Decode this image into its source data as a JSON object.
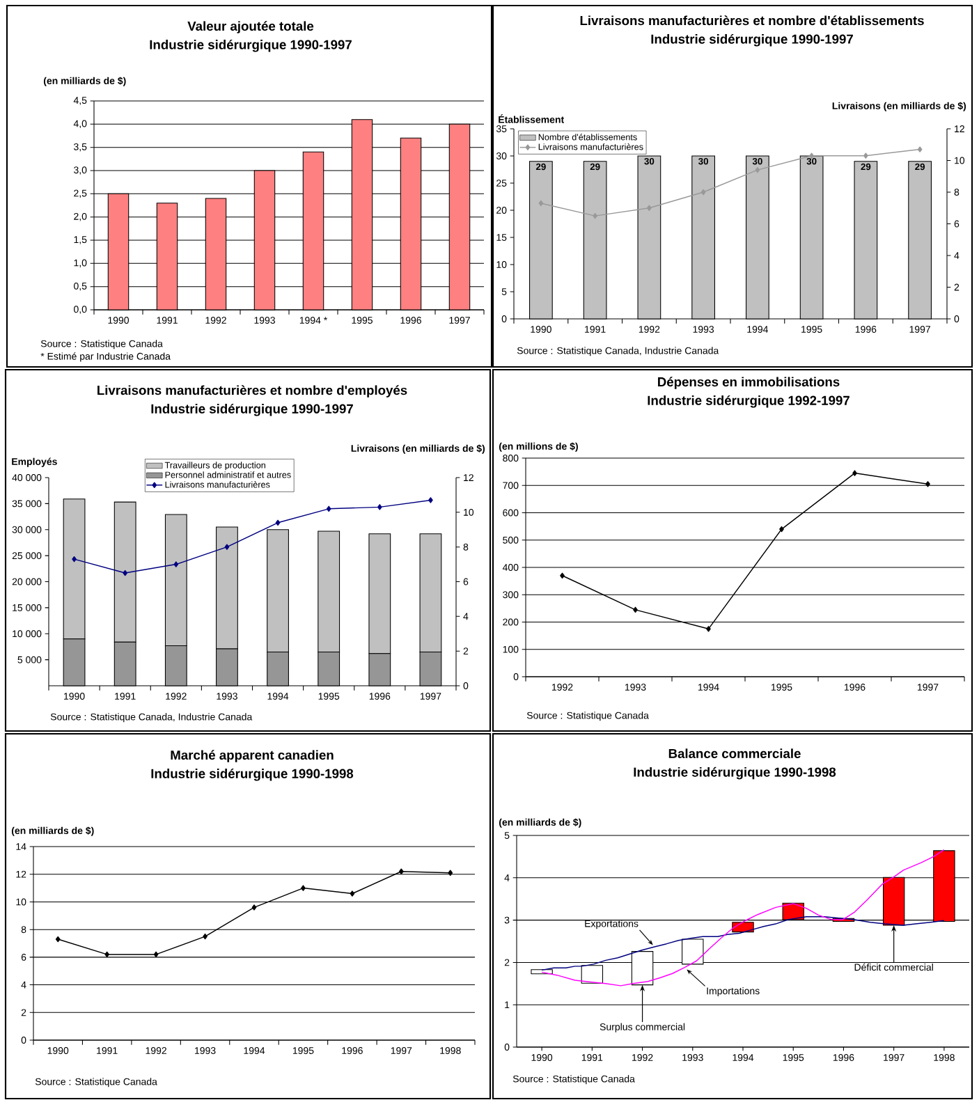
{
  "chart_data": [
    {
      "type": "bar",
      "title": "Valeur ajoutée totale",
      "subtitle": "Industrie sidérurgique 1990-1997",
      "ylabel": "(en milliards de $)",
      "categories": [
        "1990",
        "1991",
        "1992",
        "1993",
        "1994 *",
        "1995",
        "1996",
        "1997"
      ],
      "values": [
        2.5,
        2.3,
        2.4,
        3.0,
        3.4,
        4.1,
        3.7,
        4.0
      ],
      "color": "#ff8080",
      "ylim": [
        0,
        4.5
      ],
      "yticks": [
        {
          "value": 0,
          "label": "0,0"
        },
        {
          "value": 0.5,
          "label": "0,5"
        },
        {
          "value": 1,
          "label": "1,0"
        },
        {
          "value": 1.5,
          "label": "1,5"
        },
        {
          "value": 2,
          "label": "2,0"
        },
        {
          "value": 2.5,
          "label": "2,5"
        },
        {
          "value": 3,
          "label": "3,0"
        },
        {
          "value": 3.5,
          "label": "3,5"
        },
        {
          "value": 4,
          "label": "4,0"
        },
        {
          "value": 4.5,
          "label": "4,5"
        }
      ],
      "grid": "y",
      "annotations": [
        "Source : Statistique Canada",
        "* Estimé par Industrie Canada"
      ]
    },
    {
      "type": "bar",
      "title": "Livraisons manufacturières et nombre d'établissements",
      "subtitle": "Industrie sidérurgique 1990-1997",
      "ylabel": "Établissement",
      "y2label": "Livraisons (en milliards de $)",
      "categories": [
        "1990",
        "1991",
        "1992",
        "1993",
        "1994",
        "1995",
        "1996",
        "1997"
      ],
      "series": [
        {
          "name": "Nombre d'établissements",
          "type": "bar",
          "color": "#c0c0c0",
          "values": [
            29,
            29,
            30,
            30,
            30,
            30,
            29,
            29
          ],
          "value_labels": [
            "29",
            "29",
            "30",
            "30",
            "30",
            "30",
            "29",
            "29"
          ]
        },
        {
          "name": "Livraisons manufacturières",
          "type": "line",
          "axis": "y2",
          "color": "#999999",
          "values": [
            7.3,
            6.5,
            7.0,
            8.0,
            9.4,
            10.3,
            10.3,
            10.7
          ]
        }
      ],
      "ylim": [
        0,
        35
      ],
      "yticks": [
        0,
        5,
        10,
        15,
        20,
        25,
        30,
        35
      ],
      "y2lim": [
        0,
        12
      ],
      "y2ticks": [
        0,
        2,
        4,
        6,
        8,
        10,
        12
      ],
      "legend": "top left",
      "marker": "diamond",
      "annotations": [
        "Source : Statistique Canada, Industrie Canada"
      ]
    },
    {
      "type": "bar",
      "title": "Livraisons manufacturières et nombre d'employés",
      "subtitle": "Industrie sidérurgique 1990-1997",
      "ylabel": "Employés",
      "y2label": "Livraisons (en milliards de $)",
      "categories": [
        "1990",
        "1991",
        "1992",
        "1993",
        "1994",
        "1995",
        "1996",
        "1997"
      ],
      "stacked": true,
      "series": [
        {
          "name": "Personnel administratif et autres",
          "type": "bar",
          "color": "#969696",
          "values": [
            9000,
            8400,
            7700,
            7100,
            6500,
            6500,
            6200,
            6500
          ]
        },
        {
          "name": "Travailleurs de production",
          "type": "bar",
          "color": "#c0c0c0",
          "values": [
            26900,
            26900,
            25200,
            23400,
            23500,
            23200,
            23000,
            22700
          ]
        },
        {
          "name": "Livraisons manufacturières",
          "type": "line",
          "axis": "y2",
          "color": "#000080",
          "values": [
            7.3,
            6.5,
            7.0,
            8.0,
            9.4,
            10.2,
            10.3,
            10.7
          ]
        }
      ],
      "ylim": [
        0,
        40000
      ],
      "yticks": [
        {
          "value": 5000,
          "label": "5 000"
        },
        {
          "value": 10000,
          "label": "10 000"
        },
        {
          "value": 15000,
          "label": "15 000"
        },
        {
          "value": 20000,
          "label": "20 000"
        },
        {
          "value": 25000,
          "label": "25 000"
        },
        {
          "value": 30000,
          "label": "30 000"
        },
        {
          "value": 35000,
          "label": "35 000"
        },
        {
          "value": 40000,
          "label": "40 000"
        }
      ],
      "y2lim": [
        0,
        12
      ],
      "y2ticks": [
        0,
        2,
        4,
        6,
        8,
        10,
        12
      ],
      "legend": "top",
      "marker": "diamond",
      "annotations": [
        "Source : Statistique Canada, Industrie Canada"
      ]
    },
    {
      "type": "line",
      "title": "Dépenses en immobilisations",
      "subtitle": "Industrie sidérurgique 1992-1997",
      "ylabel": "(en millions de $)",
      "categories": [
        "1992",
        "1993",
        "1994",
        "1995",
        "1996",
        "1997"
      ],
      "values": [
        370,
        245,
        175,
        540,
        745,
        705
      ],
      "color": "#000000",
      "ylim": [
        0,
        800
      ],
      "yticks": [
        0,
        100,
        200,
        300,
        400,
        500,
        600,
        700,
        800
      ],
      "grid": "y",
      "marker": "diamond",
      "annotations": [
        "Source : Statistique Canada"
      ]
    },
    {
      "type": "line",
      "title": "Marché apparent canadien",
      "subtitle": "Industrie sidérurgique 1990-1998",
      "ylabel": "(en milliards de $)",
      "categories": [
        "1990",
        "1991",
        "1992",
        "1993",
        "1994",
        "1995",
        "1996",
        "1997",
        "1998"
      ],
      "values": [
        7.3,
        6.2,
        6.2,
        7.5,
        9.6,
        11.0,
        10.6,
        12.2,
        12.1
      ],
      "color": "#000000",
      "ylim": [
        0,
        14
      ],
      "yticks": [
        0,
        2,
        4,
        6,
        8,
        10,
        12,
        14
      ],
      "grid": "y",
      "marker": "diamond",
      "annotations": [
        "Source : Statistique Canada"
      ]
    },
    {
      "type": "bar",
      "title": "Balance commerciale",
      "subtitle": "Industrie sidérurgique 1990-1998",
      "ylabel": "(en milliards de $)",
      "x": [
        1990,
        1991,
        1992,
        1993,
        1994,
        1995,
        1996,
        1997,
        1998
      ],
      "series": [
        {
          "type": "bar",
          "values": [
            0.1,
            0.42,
            0.79,
            0.59,
            0.23,
            0.39,
            0.07,
            1.13,
            1.67
          ],
          "base": [
            1.73,
            1.51,
            1.47,
            1.96,
            2.72,
            3.01,
            2.97,
            2.88,
            2.97
          ],
          "colors": [
            "#ffffff",
            "#ffffff",
            "#ffffff",
            "#ffffff",
            "#ff0000",
            "#ff0000",
            "#ff0000",
            "#ff0000",
            "#ff0000"
          ]
        },
        {
          "type": "line",
          "name": "Exportations",
          "color": "#000080",
          "x": [
            1990.0,
            1990.24,
            1990.48,
            1990.66,
            1990.79,
            1991.03,
            1991.27,
            1991.51,
            1991.75,
            1991.99,
            1992.24,
            1992.48,
            1992.72,
            1992.96,
            1993.2,
            1993.5,
            1993.69,
            1993.93,
            1994.17,
            1994.41,
            1994.65,
            1994.89,
            1995.26,
            1995.62,
            1995.98,
            1996.22,
            1996.53,
            1996.83,
            1997.19,
            1997.43,
            1997.73,
            1998.0
          ],
          "values": [
            1.82,
            1.87,
            1.87,
            1.91,
            1.91,
            1.96,
            2.05,
            2.11,
            2.2,
            2.29,
            2.37,
            2.44,
            2.52,
            2.57,
            2.61,
            2.61,
            2.66,
            2.69,
            2.77,
            2.85,
            2.91,
            3.01,
            3.08,
            3.08,
            3.04,
            3.01,
            2.95,
            2.91,
            2.88,
            2.91,
            2.95,
            2.99
          ]
        },
        {
          "type": "line",
          "name": "Importations",
          "color": "#ff00ff",
          "x": [
            1990.0,
            1990.3,
            1990.66,
            1991.03,
            1991.27,
            1991.57,
            1991.81,
            1992.11,
            1992.36,
            1992.6,
            1992.84,
            1993.08,
            1993.32,
            1993.56,
            1993.81,
            1994.05,
            1994.29,
            1994.65,
            1995.0,
            1995.26,
            1995.5,
            1995.74,
            1995.98,
            1996.22,
            1996.47,
            1996.77,
            1997.0,
            1997.19,
            1997.55,
            1997.79,
            1998.0
          ],
          "values": [
            1.77,
            1.7,
            1.58,
            1.53,
            1.5,
            1.45,
            1.5,
            1.55,
            1.64,
            1.74,
            1.88,
            2.04,
            2.31,
            2.57,
            2.82,
            2.99,
            3.13,
            3.3,
            3.39,
            3.28,
            3.12,
            3.02,
            3.01,
            3.19,
            3.48,
            3.85,
            4.02,
            4.18,
            4.36,
            4.5,
            4.66
          ]
        }
      ],
      "xlim": [
        1989.5,
        1998.5
      ],
      "xticks": [
        1990,
        1991,
        1992,
        1993,
        1994,
        1995,
        1996,
        1997,
        1998
      ],
      "ylim": [
        0,
        5
      ],
      "yticks": [
        0,
        1,
        2,
        3,
        4,
        5
      ],
      "grid": "y",
      "annotations": [
        {
          "text": "Surplus commercial",
          "x": 1992,
          "y": 1.47
        },
        {
          "text": "Déficit commercial",
          "x": 1997,
          "y": 2.88
        },
        "Source : Statistique Canada"
      ]
    }
  ]
}
